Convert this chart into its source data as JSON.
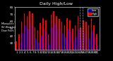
{
  "title": "Milwaukee Weather Dew Point",
  "subtitle": "Daily High/Low",
  "ylabel_left": "Milwaukee\nWI Weather\nDew Point",
  "legend_high": "High",
  "legend_low": "Low",
  "high_color": "#ff0000",
  "low_color": "#0000cc",
  "background_color": "#000000",
  "plot_bg_color": "#000000",
  "text_color": "#ffffff",
  "grid_color": "#444444",
  "ylim": [
    20,
    80
  ],
  "yticks": [
    30,
    40,
    50,
    60,
    70,
    80
  ],
  "days": [
    "1",
    "2",
    "3",
    "4",
    "5",
    "6",
    "7",
    "8",
    "9",
    "10",
    "11",
    "12",
    "13",
    "14",
    "15",
    "16",
    "17",
    "18",
    "19",
    "20",
    "21",
    "22",
    "23",
    "24",
    "25",
    "26",
    "27",
    "28",
    "29",
    "30",
    "31"
  ],
  "highs": [
    32,
    42,
    60,
    72,
    68,
    75,
    72,
    52,
    48,
    58,
    65,
    62,
    42,
    70,
    75,
    68,
    64,
    60,
    55,
    65,
    62,
    50,
    55,
    68,
    52,
    62,
    60,
    55,
    65,
    55,
    42
  ],
  "lows": [
    22,
    30,
    44,
    55,
    50,
    58,
    54,
    36,
    30,
    40,
    50,
    46,
    28,
    52,
    58,
    50,
    50,
    44,
    38,
    50,
    46,
    34,
    38,
    50,
    36,
    46,
    42,
    36,
    46,
    38,
    26
  ],
  "vline_x": [
    23.5,
    24.5
  ],
  "title_fontsize": 4.5,
  "tick_fontsize": 3.0,
  "label_fontsize": 3.0
}
